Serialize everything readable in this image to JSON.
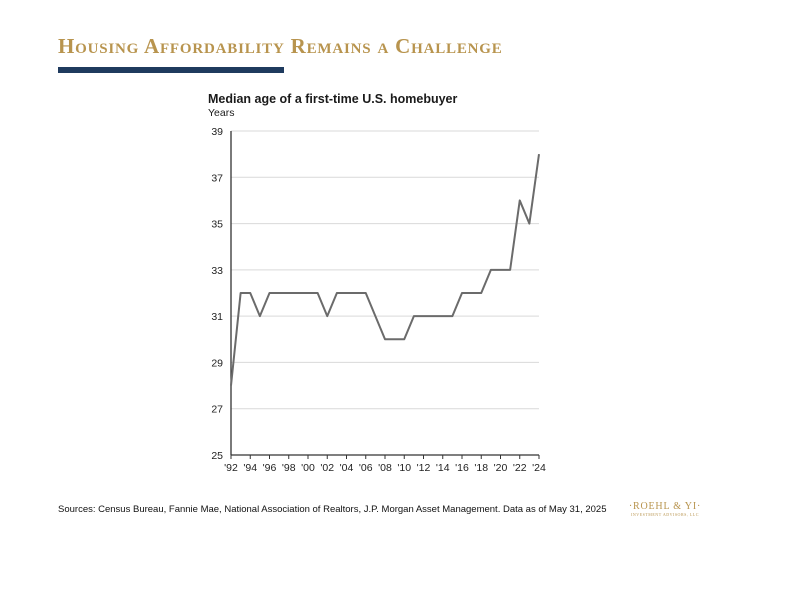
{
  "slide": {
    "title": "Housing Affordability Remains a Challenge",
    "sources": "Sources: Census Bureau, Fannie Mae, National Association of Realtors, J.P. Morgan Asset Management. Data as of May 31, 2025",
    "logo_name": "·ROEHL & YI·",
    "logo_sub": "INVESTMENT ADVISORS, LLC"
  },
  "colors": {
    "title_gold": "#b8944e",
    "rule_navy": "#1f3b5e",
    "series_gray": "#6b6b6b"
  },
  "chart_data": {
    "type": "line",
    "title": "Median age of a first-time U.S. homebuyer",
    "ylabel": "Years",
    "xlabel": "",
    "ylim": [
      25,
      39
    ],
    "xlim": [
      1992,
      2024
    ],
    "yticks": [
      25,
      27,
      29,
      31,
      33,
      35,
      37,
      39
    ],
    "xticks": [
      {
        "value": 1992,
        "label": "'92"
      },
      {
        "value": 1994,
        "label": "'94"
      },
      {
        "value": 1996,
        "label": "'96"
      },
      {
        "value": 1998,
        "label": "'98"
      },
      {
        "value": 2000,
        "label": "'00"
      },
      {
        "value": 2002,
        "label": "'02"
      },
      {
        "value": 2004,
        "label": "'04"
      },
      {
        "value": 2006,
        "label": "'06"
      },
      {
        "value": 2008,
        "label": "'08"
      },
      {
        "value": 2010,
        "label": "'10"
      },
      {
        "value": 2012,
        "label": "'12"
      },
      {
        "value": 2014,
        "label": "'14"
      },
      {
        "value": 2016,
        "label": "'16"
      },
      {
        "value": 2018,
        "label": "'18"
      },
      {
        "value": 2020,
        "label": "'20"
      },
      {
        "value": 2022,
        "label": "'22"
      },
      {
        "value": 2024,
        "label": "'24"
      }
    ],
    "grid": true,
    "series": [
      {
        "x": [
          1992,
          1993,
          1994,
          1995,
          1996,
          1997,
          1998,
          1999,
          2000,
          2001,
          2002,
          2003,
          2004,
          2005,
          2006,
          2007,
          2008,
          2009,
          2010,
          2011,
          2012,
          2013,
          2014,
          2015,
          2016,
          2017,
          2018,
          2019,
          2020,
          2021,
          2022,
          2023,
          2024
        ],
        "values": [
          28,
          32,
          32,
          31,
          32,
          32,
          32,
          32,
          32,
          32,
          31,
          32,
          32,
          32,
          32,
          31,
          30,
          30,
          30,
          31,
          31,
          31,
          31,
          31,
          32,
          32,
          32,
          33,
          33,
          33,
          36,
          35,
          38
        ]
      }
    ]
  }
}
